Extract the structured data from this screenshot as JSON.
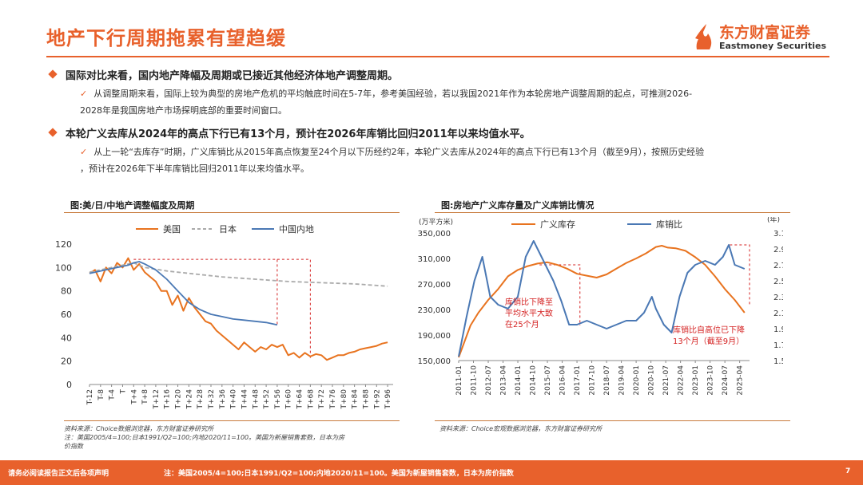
{
  "page_title": "地产下行周期拖累有望趋缓",
  "logo": {
    "name_cn": "东方财富证券",
    "name_en": "Eastmoney Securities",
    "icon": "flame-logo-icon"
  },
  "bullets": [
    {
      "heading": "国际对比来看，国内地产降幅及周期或已接近其他经济体地产调整周期。",
      "detail_line1": "从调整周期来看，国际上较为典型的房地产危机的平均触底时间在5-7年，参考美国经验，若以我国2021年作为本轮房地产调整周期的起点，可推测2026-",
      "detail_line2": "2028年是我国房地产市场探明底部的重要时间窗口。"
    },
    {
      "heading": "本轮广义去库从2024年的高点下行已有13个月，预计在2026年库销比回归2011年以来均值水平。",
      "detail_line1": "从上一轮“去库存”时期，广义库销比从2015年高点恢复至24个月以下历经约2年，本轮广义去库从2024年的高点下行已有13个月（截至9月），按照历史经验",
      "detail_line2": "，预计在2026年下半年库销比回归2011年以来均值水平。"
    }
  ],
  "check_mark": "✓",
  "chart1": {
    "caption": "图:美/日/中地产调整幅度及周期",
    "source_line1": "资料来源：Choice数据浏览器，东方财富证券研究所",
    "source_line2": "注：美国2005/4=100;日本1991/Q2=100;内地2020/11=100。美国为新屋销售套数，日本为房",
    "source_line3": "价指数"
  },
  "chart2": {
    "caption": "图:房地产广义库存量及广义库销比情况",
    "source": "资料来源：Choice宏观数据浏览器，东方财富证券研究所"
  },
  "footer": {
    "left": "请务必阅读报告正文后各项声明",
    "note": "注：美国2005/4=100;日本1991/Q2=100;内地2020/11=100。美国为新屋销售套数，日本为房价指数",
    "page": "7"
  },
  "chart_data": [
    {
      "type": "line",
      "title": "图:美/日/中地产调整幅度及周期",
      "x_ticks": [
        "T-12",
        "T-8",
        "T-4",
        "T",
        "T+4",
        "T+8",
        "T+12",
        "T+16",
        "T+20",
        "T+24",
        "T+28",
        "T+32",
        "T+36",
        "T+40",
        "T+44",
        "T+48",
        "T+52",
        "T+56",
        "T+60",
        "T+64",
        "T+68",
        "T+72",
        "T+76",
        "T+80",
        "T+84",
        "T+88",
        "T+92",
        "T+96"
      ],
      "y_ticks": [
        0,
        20,
        40,
        60,
        80,
        100,
        120
      ],
      "ylim": [
        0,
        120
      ],
      "xlim": [
        -12,
        98
      ],
      "legend": [
        "美国",
        "日本",
        "中国内地"
      ],
      "colors": {
        "美国": "#e8731f",
        "日本": "#aaaaaa",
        "中国内地": "#4a78b4"
      },
      "series": [
        {
          "name": "美国",
          "x": [
            -12,
            -10,
            -8,
            -6,
            -4,
            -2,
            0,
            2,
            4,
            6,
            8,
            10,
            12,
            14,
            16,
            18,
            20,
            22,
            24,
            26,
            28,
            30,
            32,
            34,
            36,
            38,
            40,
            42,
            44,
            46,
            48,
            50,
            52,
            54,
            56,
            58,
            60,
            62,
            64,
            66,
            68,
            70,
            72,
            74,
            76,
            78,
            80,
            82,
            84,
            86,
            88,
            90,
            92,
            94,
            96
          ],
          "values": [
            95,
            98,
            88,
            100,
            95,
            104,
            100,
            108,
            98,
            103,
            96,
            92,
            88,
            80,
            80,
            68,
            76,
            63,
            74,
            66,
            60,
            54,
            52,
            46,
            42,
            38,
            34,
            30,
            36,
            32,
            28,
            32,
            30,
            34,
            32,
            34,
            25,
            27,
            23,
            27,
            24,
            26,
            25,
            21,
            23,
            25,
            25,
            27,
            28,
            30,
            31,
            32,
            33,
            35,
            36
          ]
        },
        {
          "name": "日本",
          "x": [
            -12,
            0,
            4,
            8,
            16,
            24,
            36,
            48,
            60,
            72,
            84,
            96
          ],
          "values": [
            96,
            102,
            104,
            100,
            97,
            95,
            92,
            90,
            88,
            87,
            86,
            84
          ]
        },
        {
          "name": "中国内地",
          "x": [
            -12,
            -8,
            -4,
            0,
            2,
            4,
            6,
            8,
            12,
            16,
            20,
            24,
            28,
            32,
            36,
            40,
            44,
            48,
            52,
            56
          ],
          "values": [
            95,
            97,
            99,
            101,
            102,
            104,
            105,
            103,
            98,
            90,
            80,
            70,
            64,
            60,
            58,
            56,
            55,
            54,
            53,
            51
          ]
        }
      ],
      "annotation_boxes": "two red dashed boxes marking peak-to-trough durations (from T+4 to T+56 and T+68)"
    },
    {
      "type": "line",
      "title": "图:房地产广义库存量及广义库销比情况",
      "left_axis_unit": "(万平方米)",
      "right_axis_unit": "(年)",
      "left_y_ticks": [
        "150,000",
        "190,000",
        "230,000",
        "270,000",
        "310,000",
        "350,000"
      ],
      "right_y_ticks": [
        "1.5",
        "1.7",
        "1.9",
        "2.1",
        "2.3",
        "2.5",
        "2.7",
        "2.9",
        "3.1"
      ],
      "x_ticks": [
        "2011-01",
        "2011-10",
        "2012-07",
        "2013-04",
        "2014-01",
        "2014-10",
        "2015-07",
        "2016-04",
        "2017-01",
        "2017-10",
        "2018-07",
        "2019-04",
        "2020-01",
        "2020-10",
        "2021-07",
        "2022-04",
        "2023-01",
        "2023-10",
        "2024-07",
        "2025-04"
      ],
      "legend": [
        "广义库存",
        "库销比"
      ],
      "colors": {
        "广义库存": "#e8731f",
        "库销比": "#4a78b4"
      },
      "series": [
        {
          "name": "广义库存",
          "axis": "left",
          "x": [
            2011.0,
            2011.3,
            2011.6,
            2012.0,
            2012.5,
            2013.0,
            2013.5,
            2014.0,
            2014.5,
            2015.0,
            2015.5,
            2016.0,
            2016.5,
            2017.0,
            2017.5,
            2018.0,
            2018.5,
            2019.0,
            2019.5,
            2020.0,
            2020.5,
            2021.0,
            2021.3,
            2021.6,
            2022.0,
            2022.5,
            2023.0,
            2023.5,
            2024.0,
            2024.5,
            2025.0,
            2025.5
          ],
          "values": [
            155000,
            180000,
            205000,
            225000,
            245000,
            262000,
            282000,
            292000,
            298000,
            302000,
            304000,
            300000,
            294000,
            286000,
            283000,
            280000,
            285000,
            294000,
            303000,
            310000,
            318000,
            328000,
            330000,
            327000,
            326000,
            322000,
            312000,
            300000,
            282000,
            262000,
            245000,
            225000
          ]
        },
        {
          "name": "库销比",
          "axis": "right",
          "x": [
            2011.0,
            2011.4,
            2011.8,
            2012.2,
            2012.6,
            2013.0,
            2013.5,
            2014.0,
            2014.4,
            2014.8,
            2015.0,
            2015.4,
            2015.8,
            2016.2,
            2016.6,
            2017.0,
            2017.5,
            2018.0,
            2018.5,
            2019.0,
            2019.5,
            2020.0,
            2020.4,
            2020.8,
            2021.0,
            2021.4,
            2021.8,
            2022.2,
            2022.6,
            2023.0,
            2023.5,
            2024.0,
            2024.4,
            2024.7,
            2025.0,
            2025.5
          ],
          "values": [
            1.55,
            2.05,
            2.5,
            2.8,
            2.3,
            2.2,
            2.15,
            2.3,
            2.8,
            3.0,
            2.9,
            2.7,
            2.5,
            2.25,
            1.95,
            1.95,
            2.0,
            1.95,
            1.9,
            1.95,
            2.0,
            2.0,
            2.1,
            2.3,
            2.15,
            1.95,
            1.85,
            2.3,
            2.6,
            2.7,
            2.75,
            2.7,
            2.8,
            2.95,
            2.7,
            2.65
          ]
        }
      ],
      "annotations": [
        {
          "text_line1": "库销比下降至",
          "text_line2": "平均水平大致",
          "text_line3": "在25个月"
        },
        {
          "text_line1": "库销比自高位已下降",
          "text_line2": "13个月（截至9月）"
        }
      ]
    }
  ]
}
